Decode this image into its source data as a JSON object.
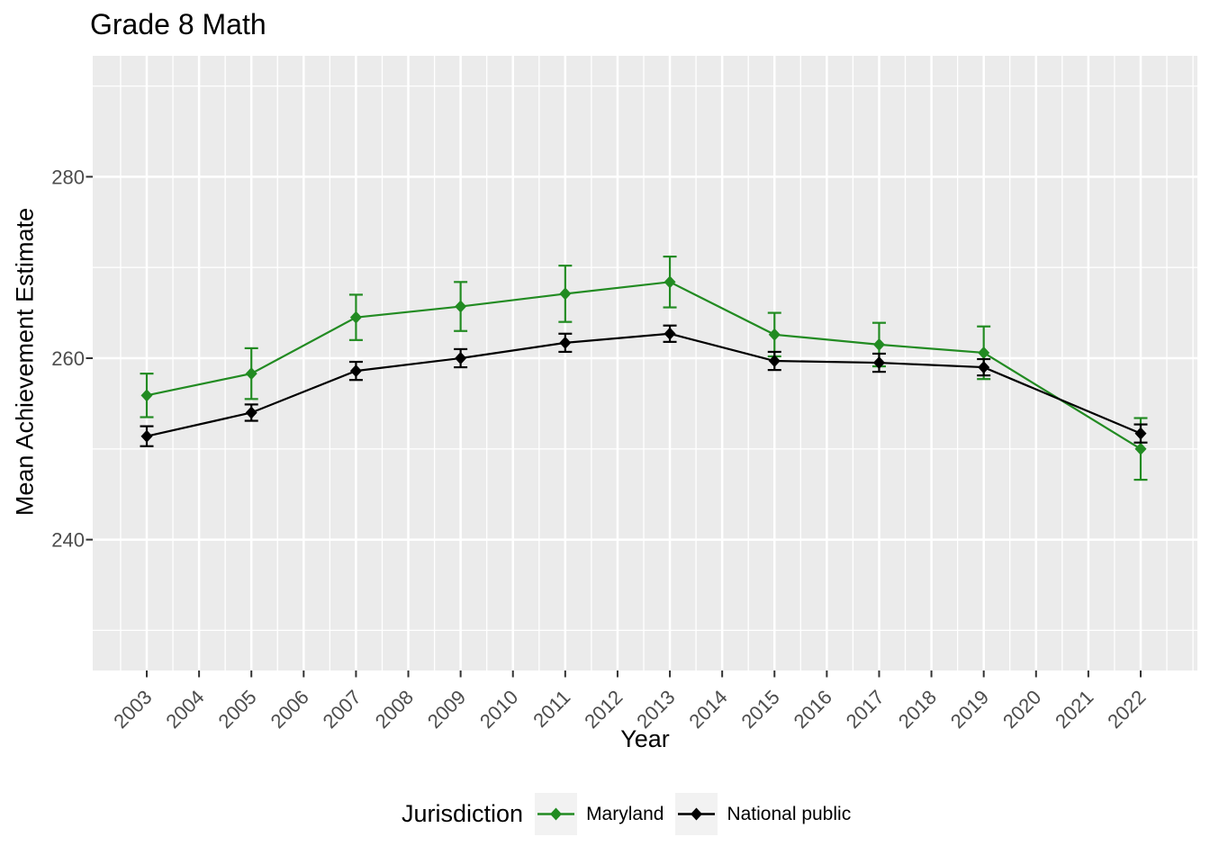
{
  "title": "Grade 8 Math",
  "chart_data": {
    "type": "line",
    "title": "Grade 8 Math",
    "xlabel": "Year",
    "ylabel": "Mean Achievement Estimate",
    "x": [
      2003,
      2005,
      2007,
      2009,
      2011,
      2013,
      2015,
      2017,
      2019,
      2022
    ],
    "series": [
      {
        "name": "Maryland",
        "color": "#228B22",
        "values": [
          255.9,
          258.3,
          264.5,
          265.7,
          267.1,
          268.4,
          262.6,
          261.5,
          260.6,
          250.0
        ],
        "error_margin": [
          2.4,
          2.8,
          2.5,
          2.7,
          3.1,
          2.8,
          2.4,
          2.4,
          2.9,
          3.4
        ]
      },
      {
        "name": "National public",
        "color": "#000000",
        "values": [
          251.4,
          254.0,
          258.6,
          260.0,
          261.7,
          262.7,
          259.7,
          259.5,
          259.0,
          251.7
        ],
        "error_margin": [
          1.1,
          0.9,
          1.0,
          1.0,
          1.0,
          0.9,
          1.0,
          1.0,
          0.9,
          1.0
        ]
      }
    ],
    "x_ticks": [
      2003,
      2004,
      2005,
      2006,
      2007,
      2008,
      2009,
      2010,
      2011,
      2012,
      2013,
      2014,
      2015,
      2016,
      2017,
      2018,
      2019,
      2020,
      2021,
      2022
    ],
    "y_ticks": [
      240,
      260,
      280
    ],
    "xlim": [
      2002,
      2023
    ],
    "ylim": [
      225,
      293
    ],
    "grid": true,
    "marker": "diamond",
    "error_bars": true,
    "legend": {
      "title": "Jurisdiction",
      "position": "bottom",
      "entries": [
        {
          "name": "Maryland",
          "color": "#228B22"
        },
        {
          "name": "National public",
          "color": "#000000"
        }
      ]
    }
  },
  "colors": {
    "background": "#FFFFFF",
    "panel": "#EBEBEB",
    "grid": "#FFFFFF",
    "legend_key": "#F2F2F2",
    "tick_label": "#4D4D4D",
    "tick_mark": "#333333"
  }
}
